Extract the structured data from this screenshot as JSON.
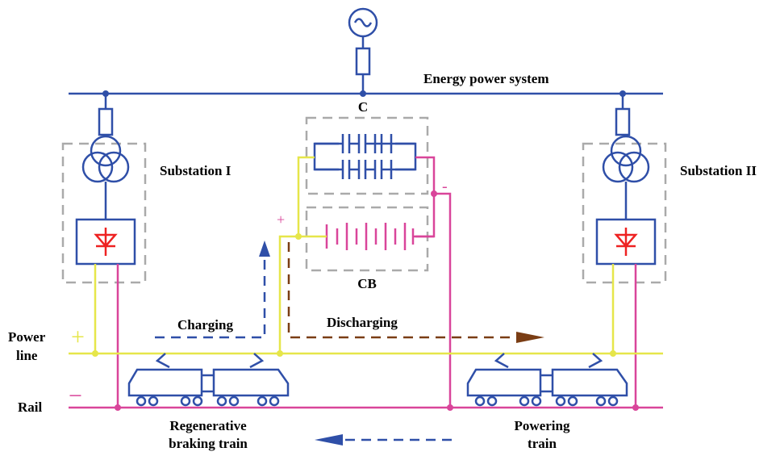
{
  "labels": {
    "grid": "Energy power system",
    "capacitor": "C",
    "battery": "CB",
    "substation_1": "Substation I",
    "substation_2": "Substation II",
    "storage_plus": "+",
    "storage_minus": "-",
    "charging": "Charging",
    "discharging": "Discharging",
    "power_line": [
      "Power",
      "line"
    ],
    "line_plus": "+",
    "rail": "Rail",
    "rail_minus": "−",
    "regen_train": [
      "Regenerative",
      "braking train"
    ],
    "powering_train": [
      "Powering",
      "train"
    ]
  }
}
